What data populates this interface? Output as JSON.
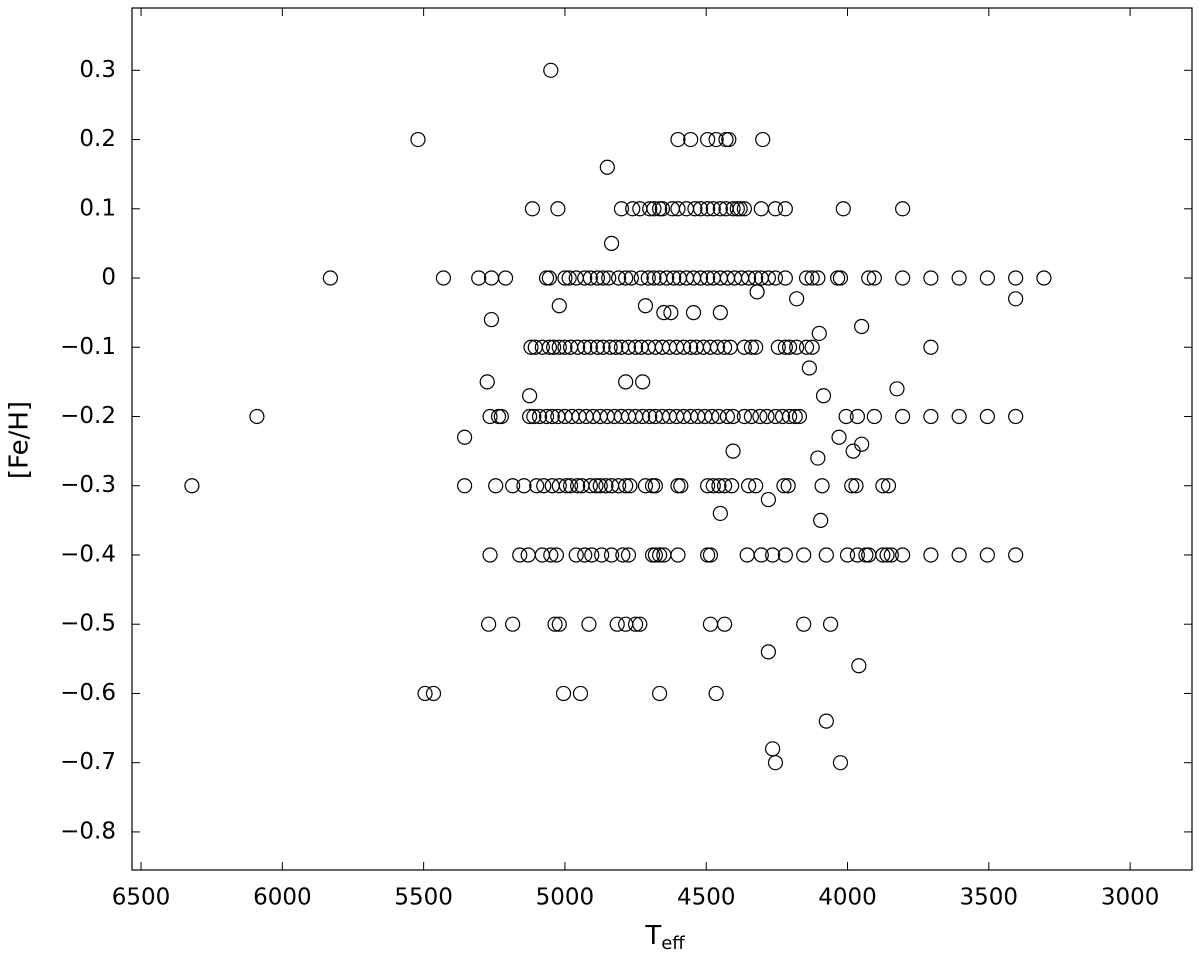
{
  "chart_data": {
    "type": "scatter",
    "xlabel": {
      "main": "T",
      "sub": "eff"
    },
    "ylabel": "[Fe/H]",
    "color": "#000000",
    "xlim": [
      6532,
      2781
    ],
    "ylim": [
      -0.855,
      0.39
    ],
    "xticks": [
      6500,
      6000,
      5500,
      5000,
      4500,
      4000,
      3500,
      3000
    ],
    "yticks": [
      0.3,
      0.2,
      0.1,
      0,
      {
        "value": -0.1,
        "label": "−0.1"
      },
      {
        "value": -0.2,
        "label": "−0.2"
      },
      {
        "value": -0.3,
        "label": "−0.3"
      },
      {
        "value": -0.4,
        "label": "−0.4"
      },
      {
        "value": -0.5,
        "label": "−0.5"
      },
      {
        "value": -0.6,
        "label": "−0.6"
      },
      {
        "value": -0.7,
        "label": "−0.7"
      },
      {
        "value": -0.8,
        "label": "−0.8"
      }
    ],
    "grid": false,
    "x": [
      5050,
      5520,
      4600,
      4555,
      4495,
      4465,
      4430,
      4420,
      4300,
      4850,
      5115,
      5025,
      4800,
      4760,
      4735,
      4700,
      4685,
      4665,
      4655,
      4620,
      4600,
      4570,
      4540,
      4520,
      4495,
      4475,
      4450,
      4430,
      4405,
      4390,
      4380,
      4365,
      4305,
      4255,
      4220,
      4015,
      3805,
      4835,
      5830,
      5430,
      5305,
      5260,
      5210,
      5065,
      5055,
      5000,
      4985,
      4960,
      4930,
      4910,
      4885,
      4865,
      4845,
      4810,
      4785,
      4765,
      4730,
      4705,
      4685,
      4665,
      4640,
      4615,
      4595,
      4570,
      4545,
      4520,
      4495,
      4475,
      4450,
      4425,
      4400,
      4375,
      4350,
      4325,
      4305,
      4280,
      4255,
      4220,
      4145,
      4125,
      4105,
      4035,
      4025,
      3925,
      3905,
      3805,
      3705,
      3605,
      3505,
      3405,
      3305,
      4320,
      4180,
      3405,
      5020,
      4715,
      4650,
      4625,
      4545,
      4450,
      5260,
      3950,
      4100,
      5120,
      5105,
      5080,
      5055,
      5040,
      5020,
      5000,
      4980,
      4955,
      4930,
      4910,
      4885,
      4865,
      4840,
      4820,
      4800,
      4775,
      4750,
      4730,
      4705,
      4680,
      4655,
      4630,
      4605,
      4580,
      4555,
      4535,
      4510,
      4485,
      4460,
      4435,
      4415,
      4365,
      4340,
      4325,
      4245,
      4220,
      4205,
      4180,
      4145,
      4125,
      3705,
      4135,
      5275,
      4785,
      4725,
      3825,
      5125,
      4085,
      6090,
      5265,
      5235,
      5225,
      5125,
      5110,
      5090,
      5065,
      5045,
      5025,
      5000,
      4975,
      4950,
      4925,
      4900,
      4875,
      4850,
      4825,
      4800,
      4775,
      4750,
      4725,
      4700,
      4680,
      4655,
      4630,
      4605,
      4580,
      4555,
      4530,
      4505,
      4480,
      4455,
      4425,
      4405,
      4365,
      4340,
      4310,
      4285,
      4255,
      4230,
      4205,
      4185,
      4170,
      4005,
      3965,
      3905,
      3805,
      3705,
      3605,
      3505,
      3405,
      5355,
      4030,
      3950,
      4405,
      3980,
      4105,
      6320,
      5355,
      5245,
      5185,
      5145,
      5100,
      5075,
      5045,
      5020,
      4995,
      4980,
      4955,
      4940,
      4910,
      4890,
      4875,
      4855,
      4835,
      4810,
      4785,
      4770,
      4715,
      4690,
      4680,
      4600,
      4590,
      4495,
      4475,
      4455,
      4435,
      4410,
      4350,
      4325,
      4225,
      4210,
      4090,
      3985,
      3970,
      3875,
      3855,
      4280,
      4450,
      4095,
      5265,
      5160,
      5130,
      5080,
      5050,
      5030,
      4960,
      4930,
      4905,
      4870,
      4835,
      4795,
      4775,
      4690,
      4680,
      4665,
      4650,
      4600,
      4495,
      4485,
      4355,
      4305,
      4265,
      4220,
      4155,
      4075,
      4000,
      3965,
      3935,
      3925,
      3875,
      3860,
      3845,
      3805,
      3705,
      3605,
      3505,
      3405,
      5270,
      5185,
      5035,
      5020,
      4915,
      4815,
      4785,
      4750,
      4735,
      4485,
      4435,
      4155,
      4060,
      4280,
      3960,
      5495,
      5465,
      5005,
      4945,
      4665,
      4465,
      4075,
      4265,
      4255,
      4025
    ],
    "values": [
      0.3,
      0.2,
      0.2,
      0.2,
      0.2,
      0.2,
      0.2,
      0.2,
      0.2,
      0.16,
      0.1,
      0.1,
      0.1,
      0.1,
      0.1,
      0.1,
      0.1,
      0.1,
      0.1,
      0.1,
      0.1,
      0.1,
      0.1,
      0.1,
      0.1,
      0.1,
      0.1,
      0.1,
      0.1,
      0.1,
      0.1,
      0.1,
      0.1,
      0.1,
      0.1,
      0.1,
      0.1,
      0.05,
      0,
      0,
      0,
      0,
      0,
      0,
      0,
      0,
      0,
      0,
      0,
      0,
      0,
      0,
      0,
      0,
      0,
      0,
      0,
      0,
      0,
      0,
      0,
      0,
      0,
      0,
      0,
      0,
      0,
      0,
      0,
      0,
      0,
      0,
      0,
      0,
      0,
      0,
      0,
      0,
      0,
      0,
      0,
      0,
      0,
      0,
      0,
      0,
      0,
      0,
      0,
      0,
      0,
      -0.02,
      -0.03,
      -0.03,
      -0.04,
      -0.04,
      -0.05,
      -0.05,
      -0.05,
      -0.05,
      -0.06,
      -0.07,
      -0.08,
      -0.1,
      -0.1,
      -0.1,
      -0.1,
      -0.1,
      -0.1,
      -0.1,
      -0.1,
      -0.1,
      -0.1,
      -0.1,
      -0.1,
      -0.1,
      -0.1,
      -0.1,
      -0.1,
      -0.1,
      -0.1,
      -0.1,
      -0.1,
      -0.1,
      -0.1,
      -0.1,
      -0.1,
      -0.1,
      -0.1,
      -0.1,
      -0.1,
      -0.1,
      -0.1,
      -0.1,
      -0.1,
      -0.1,
      -0.1,
      -0.1,
      -0.1,
      -0.1,
      -0.1,
      -0.1,
      -0.1,
      -0.1,
      -0.1,
      -0.13,
      -0.15,
      -0.15,
      -0.15,
      -0.16,
      -0.17,
      -0.17,
      -0.2,
      -0.2,
      -0.2,
      -0.2,
      -0.2,
      -0.2,
      -0.2,
      -0.2,
      -0.2,
      -0.2,
      -0.2,
      -0.2,
      -0.2,
      -0.2,
      -0.2,
      -0.2,
      -0.2,
      -0.2,
      -0.2,
      -0.2,
      -0.2,
      -0.2,
      -0.2,
      -0.2,
      -0.2,
      -0.2,
      -0.2,
      -0.2,
      -0.2,
      -0.2,
      -0.2,
      -0.2,
      -0.2,
      -0.2,
      -0.2,
      -0.2,
      -0.2,
      -0.2,
      -0.2,
      -0.2,
      -0.2,
      -0.2,
      -0.2,
      -0.2,
      -0.2,
      -0.2,
      -0.2,
      -0.2,
      -0.2,
      -0.2,
      -0.2,
      -0.2,
      -0.23,
      -0.23,
      -0.24,
      -0.25,
      -0.25,
      -0.26,
      -0.3,
      -0.3,
      -0.3,
      -0.3,
      -0.3,
      -0.3,
      -0.3,
      -0.3,
      -0.3,
      -0.3,
      -0.3,
      -0.3,
      -0.3,
      -0.3,
      -0.3,
      -0.3,
      -0.3,
      -0.3,
      -0.3,
      -0.3,
      -0.3,
      -0.3,
      -0.3,
      -0.3,
      -0.3,
      -0.3,
      -0.3,
      -0.3,
      -0.3,
      -0.3,
      -0.3,
      -0.3,
      -0.3,
      -0.3,
      -0.3,
      -0.3,
      -0.3,
      -0.3,
      -0.3,
      -0.3,
      -0.32,
      -0.34,
      -0.35,
      -0.4,
      -0.4,
      -0.4,
      -0.4,
      -0.4,
      -0.4,
      -0.4,
      -0.4,
      -0.4,
      -0.4,
      -0.4,
      -0.4,
      -0.4,
      -0.4,
      -0.4,
      -0.4,
      -0.4,
      -0.4,
      -0.4,
      -0.4,
      -0.4,
      -0.4,
      -0.4,
      -0.4,
      -0.4,
      -0.4,
      -0.4,
      -0.4,
      -0.4,
      -0.4,
      -0.4,
      -0.4,
      -0.4,
      -0.4,
      -0.4,
      -0.4,
      -0.4,
      -0.4,
      -0.5,
      -0.5,
      -0.5,
      -0.5,
      -0.5,
      -0.5,
      -0.5,
      -0.5,
      -0.5,
      -0.5,
      -0.5,
      -0.5,
      -0.5,
      -0.54,
      -0.56,
      -0.6,
      -0.6,
      -0.6,
      -0.6,
      -0.6,
      -0.6,
      -0.64,
      -0.68,
      -0.7,
      -0.7
    ]
  }
}
